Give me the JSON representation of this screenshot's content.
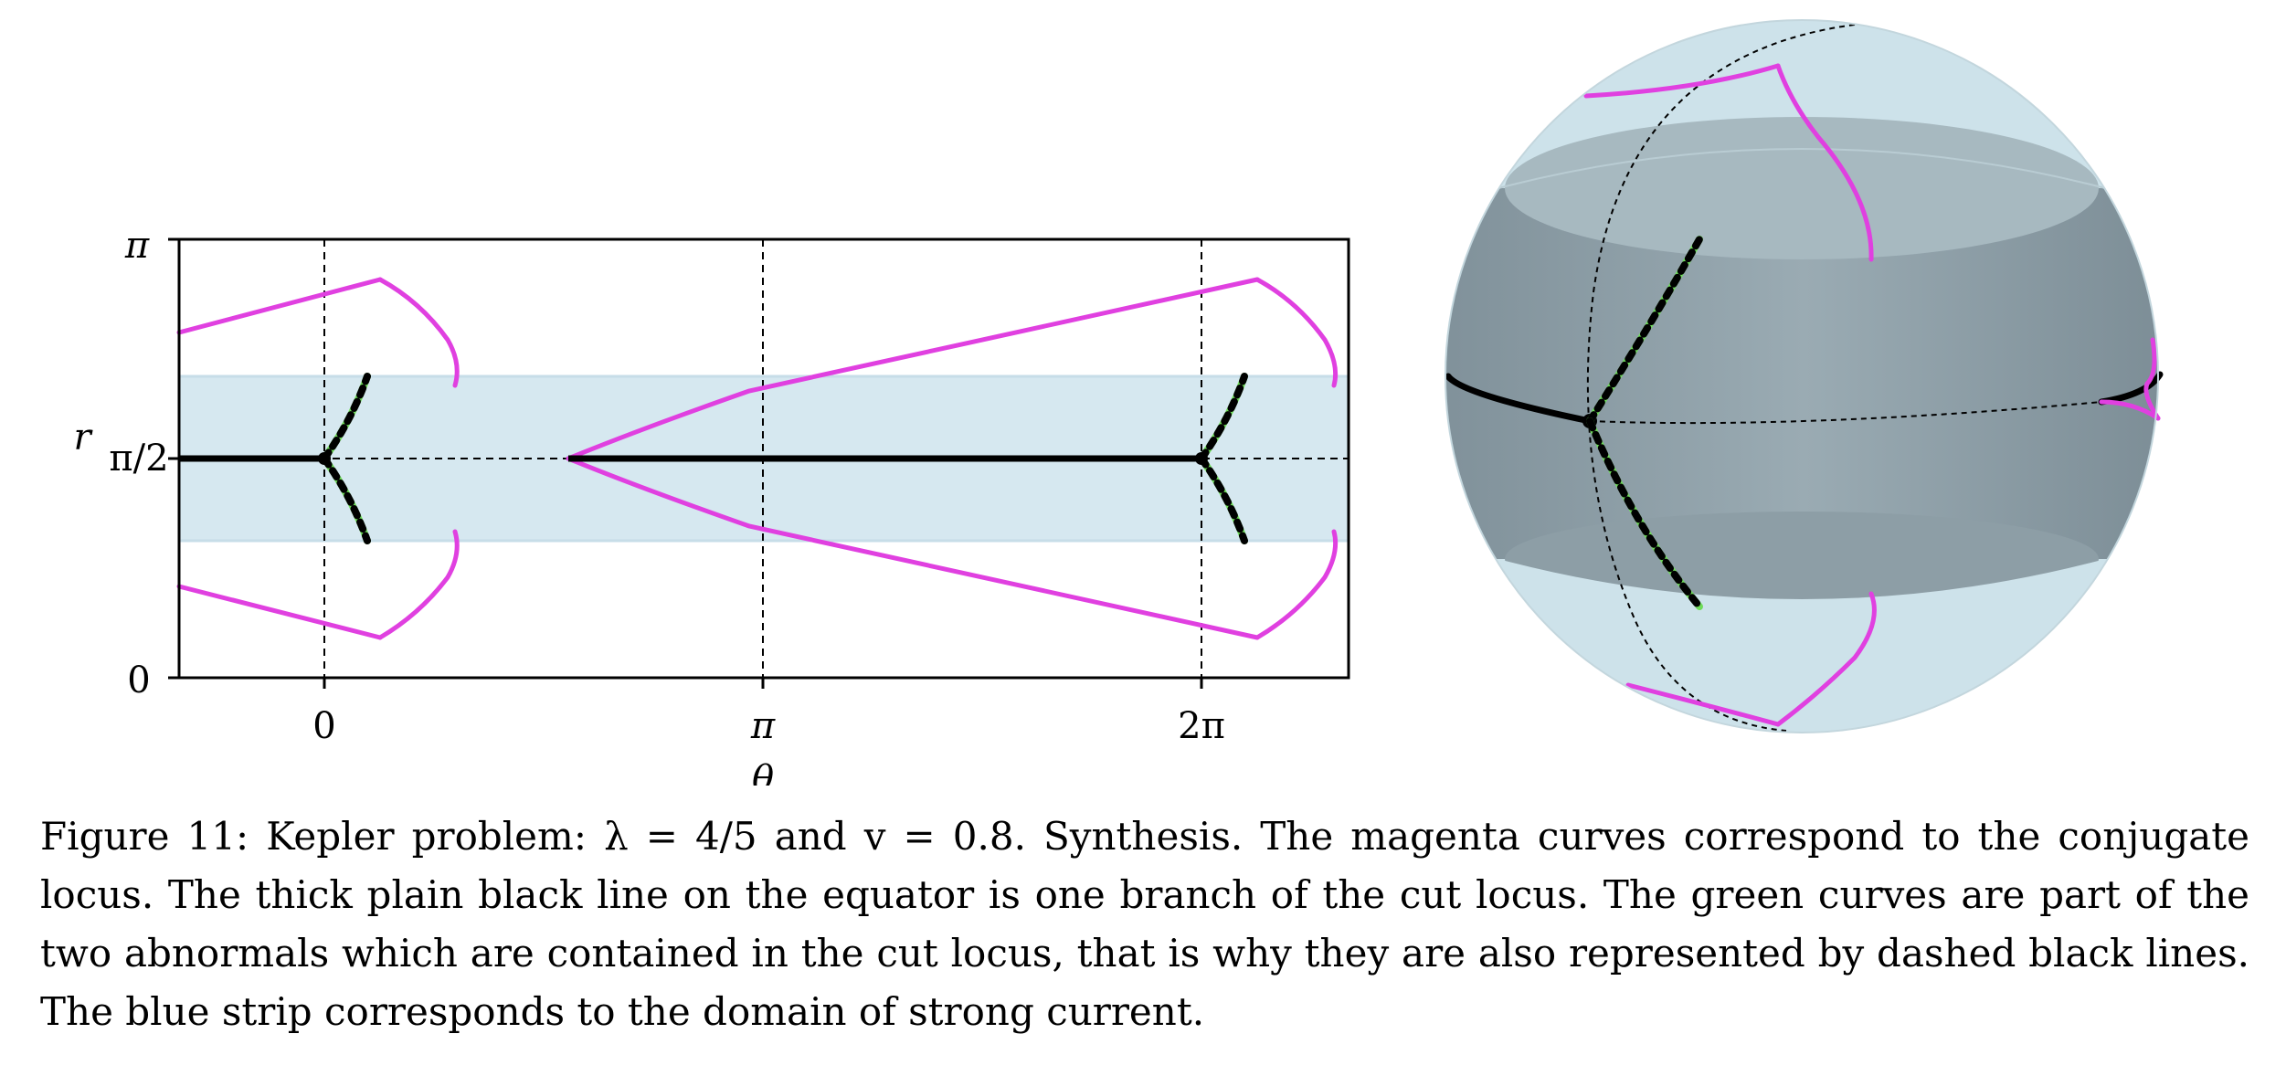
{
  "figure": {
    "left_plot": {
      "y_axis_label": "r",
      "x_axis_label": "θ",
      "y_ticks": [
        "0",
        "π/2",
        "π"
      ],
      "x_ticks": [
        "0",
        "π",
        "2π"
      ]
    }
  },
  "caption": {
    "label": "Figure 11:",
    "text": "Kepler problem: λ = 4/5 and v = 0.8. Synthesis. The magenta curves correspond to the conjugate locus. The thick plain black line on the equator is one branch of the cut locus. The green curves are part of the two abnormals which are contained in the cut locus, that is why they are also represented by dashed black lines. The blue strip corresponds to the domain of strong current."
  },
  "colors": {
    "conjugate_locus": "#e040e0",
    "cut_locus": "#000000",
    "abnormals": "#6fdc5a",
    "strong_current_strip": "#d6e8f0",
    "sphere_band": "#8d9ea6",
    "sphere_caps": "#cde2ea"
  }
}
